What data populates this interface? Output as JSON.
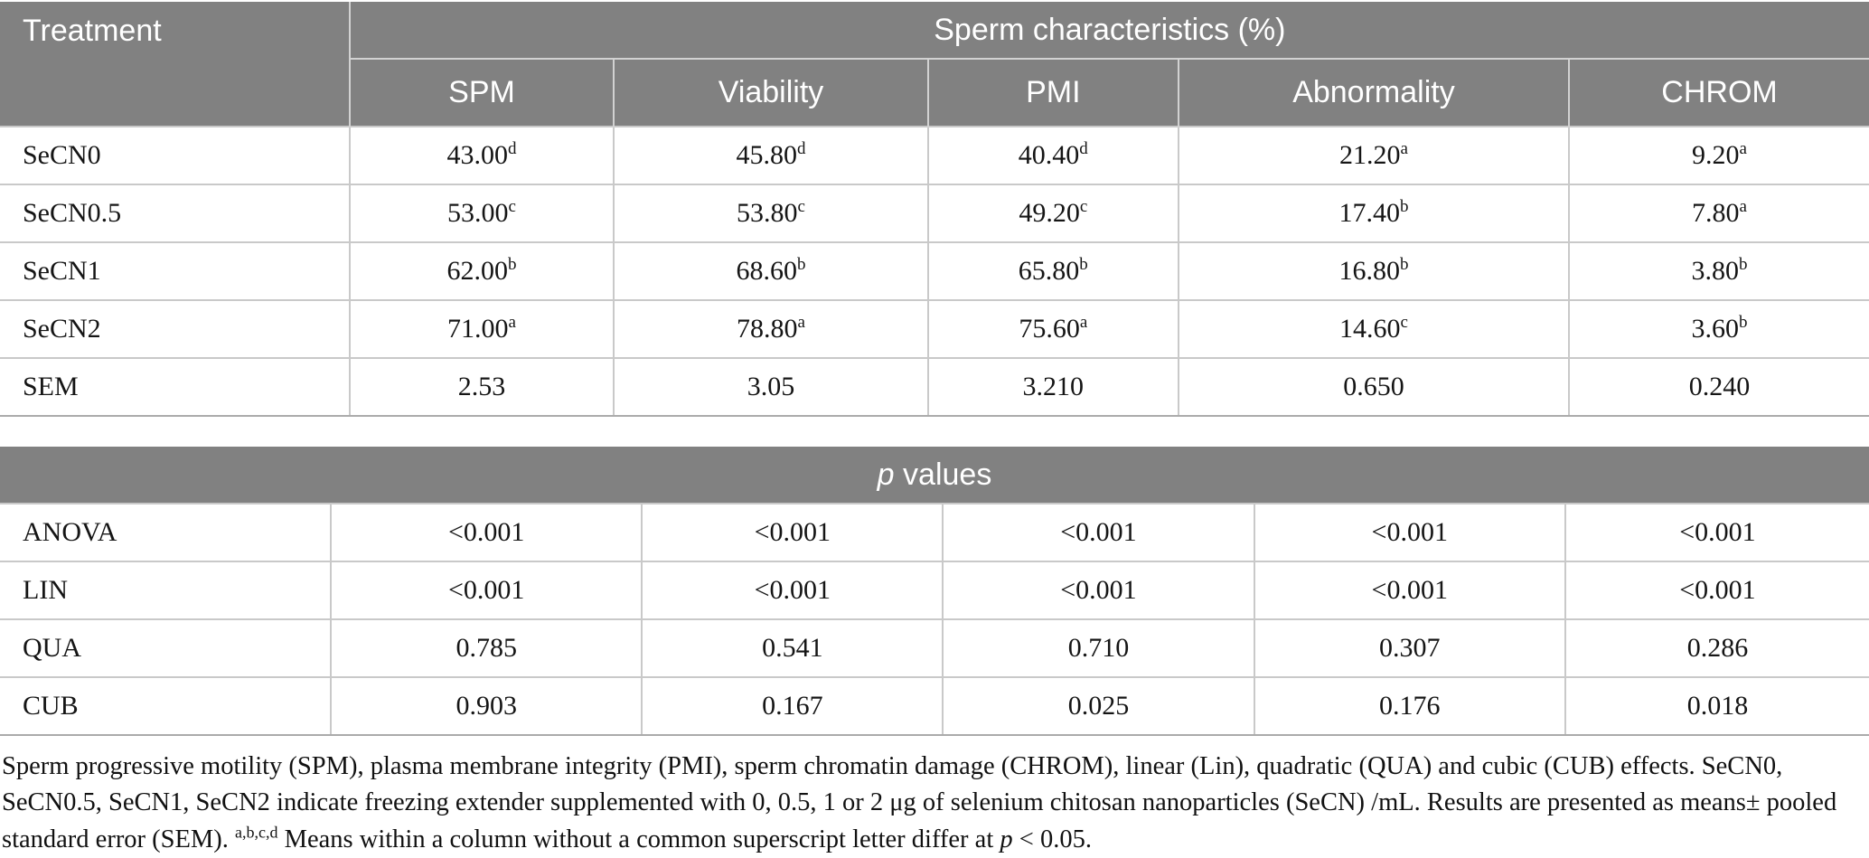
{
  "colors": {
    "header_bg": "#818181",
    "header_text": "#ffffff",
    "body_border": "#c9c9c9",
    "table_bottom_border": "#ababab"
  },
  "table1": {
    "corner_label": "Treatment",
    "group_header": "Sperm characteristics (%)",
    "columns": [
      "SPM",
      "Viability",
      "PMI",
      "Abnormality",
      "CHROM"
    ],
    "rows": [
      {
        "label": "SeCN0",
        "values": [
          {
            "v": "43.00",
            "sup": "d"
          },
          {
            "v": "45.80",
            "sup": "d"
          },
          {
            "v": "40.40",
            "sup": "d"
          },
          {
            "v": "21.20",
            "sup": "a"
          },
          {
            "v": "9.20",
            "sup": "a"
          }
        ]
      },
      {
        "label": "SeCN0.5",
        "values": [
          {
            "v": "53.00",
            "sup": "c"
          },
          {
            "v": "53.80",
            "sup": "c"
          },
          {
            "v": "49.20",
            "sup": "c"
          },
          {
            "v": "17.40",
            "sup": "b"
          },
          {
            "v": "7.80",
            "sup": "a"
          }
        ]
      },
      {
        "label": "SeCN1",
        "values": [
          {
            "v": "62.00",
            "sup": "b"
          },
          {
            "v": "68.60",
            "sup": "b"
          },
          {
            "v": "65.80",
            "sup": "b"
          },
          {
            "v": "16.80",
            "sup": "b"
          },
          {
            "v": "3.80",
            "sup": "b"
          }
        ]
      },
      {
        "label": "SeCN2",
        "values": [
          {
            "v": "71.00",
            "sup": "a"
          },
          {
            "v": "78.80",
            "sup": "a"
          },
          {
            "v": "75.60",
            "sup": "a"
          },
          {
            "v": "14.60",
            "sup": "c"
          },
          {
            "v": "3.60",
            "sup": "b"
          }
        ]
      },
      {
        "label": "SEM",
        "values": [
          {
            "v": "2.53"
          },
          {
            "v": "3.05"
          },
          {
            "v": "3.210"
          },
          {
            "v": "0.650"
          },
          {
            "v": "0.240"
          }
        ]
      }
    ]
  },
  "table2": {
    "header_italic": "p",
    "header_rest": " values",
    "rows": [
      {
        "label": "ANOVA",
        "values": [
          {
            "v": "<0.001"
          },
          {
            "v": "<0.001"
          },
          {
            "v": "<0.001"
          },
          {
            "v": "<0.001"
          },
          {
            "v": "<0.001"
          }
        ]
      },
      {
        "label": "LIN",
        "values": [
          {
            "v": "<0.001"
          },
          {
            "v": "<0.001"
          },
          {
            "v": "<0.001"
          },
          {
            "v": "<0.001"
          },
          {
            "v": "<0.001"
          }
        ]
      },
      {
        "label": "QUA",
        "values": [
          {
            "v": "0.785"
          },
          {
            "v": "0.541"
          },
          {
            "v": "0.710"
          },
          {
            "v": "0.307"
          },
          {
            "v": "0.286"
          }
        ]
      },
      {
        "label": "CUB",
        "values": [
          {
            "v": "0.903"
          },
          {
            "v": "0.167"
          },
          {
            "v": "0.025"
          },
          {
            "v": "0.176"
          },
          {
            "v": "0.018"
          }
        ]
      }
    ]
  },
  "footnote": {
    "part1": "Sperm progressive motility (SPM), plasma membrane integrity (PMI), sperm chromatin damage (CHROM), linear (Lin), quadratic (QUA) and cubic (CUB) effects. SeCN0, SeCN0.5, SeCN1, SeCN2 indicate freezing extender supplemented with 0, 0.5, 1 or 2 μg of selenium chitosan nanoparticles (SeCN) /mL. Results are presented as means± pooled standard error (SEM). ",
    "sup": "a,b,c,d",
    "part2": " Means within a column without a common superscript letter differ at ",
    "italic": "p",
    "part3": " < 0.05."
  }
}
